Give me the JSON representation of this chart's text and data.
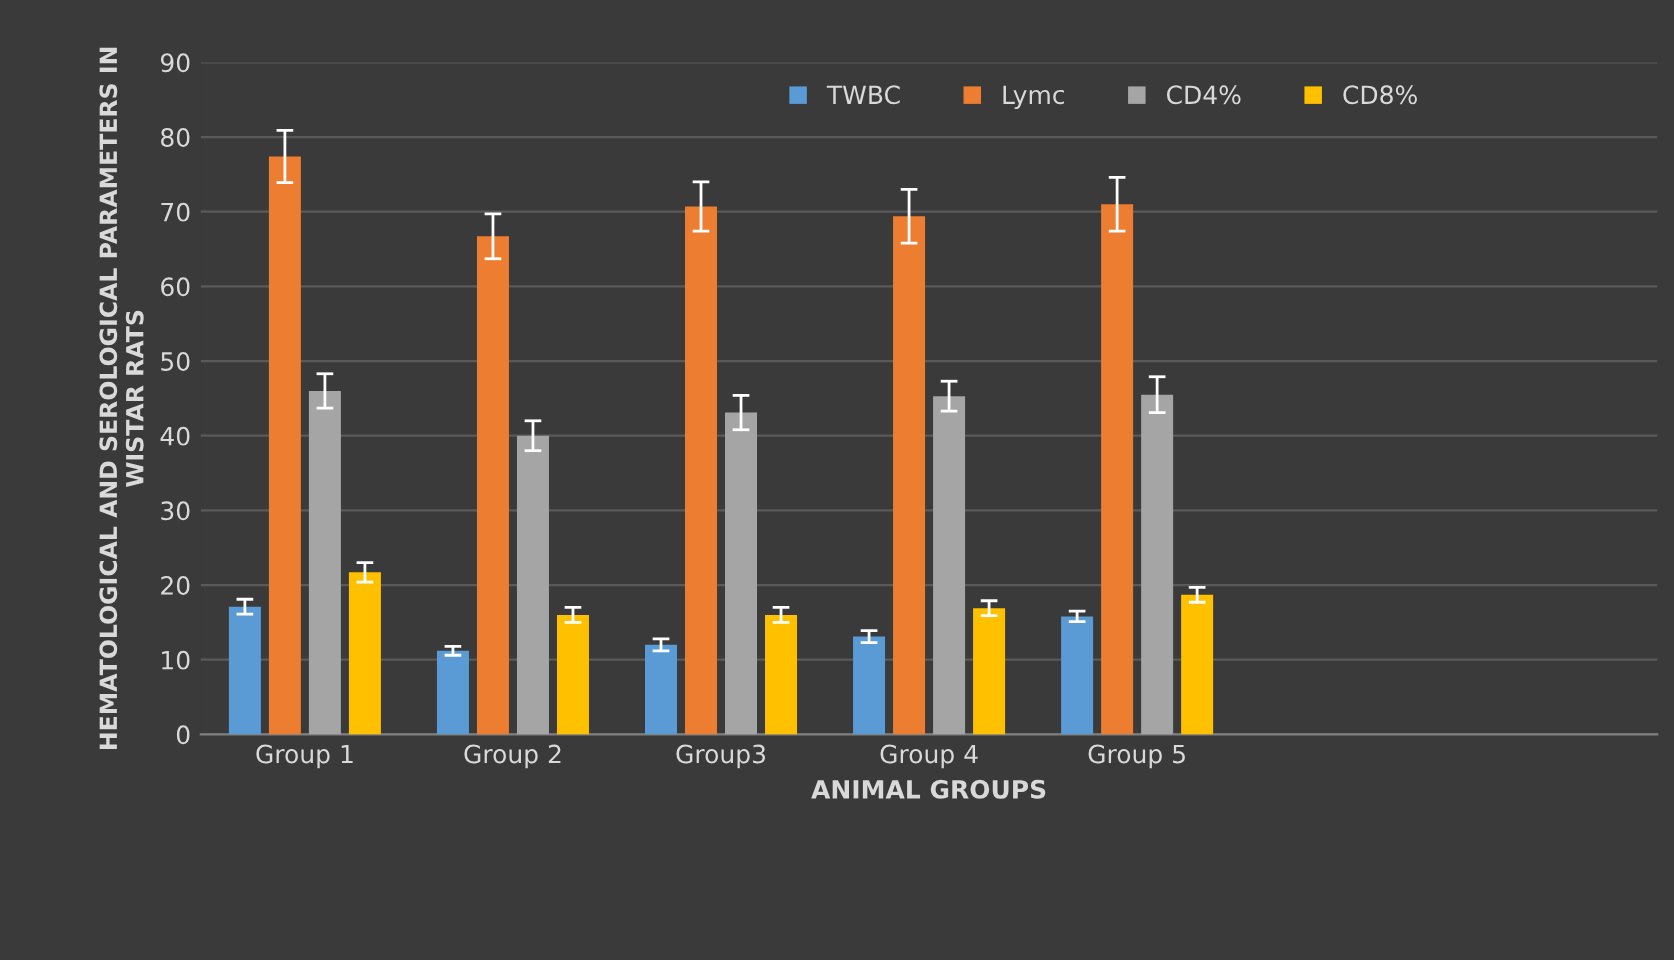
{
  "chart_data": {
    "type": "bar",
    "xlabel": "ANIMAL GROUPS",
    "ylabel": "HEMATOLOGICAL AND SEROLOGICAL PARAMETERS IN\nWISTAR RATS",
    "categories": [
      "Group 1",
      "Group 2",
      "Group3",
      "Group 4",
      "Group 5",
      null,
      null
    ],
    "series": [
      {
        "name": "TWBC",
        "color": "#5b9bd5",
        "values": [
          17.1,
          11.2,
          12,
          13.1,
          15.8,
          null,
          null
        ],
        "errors": [
          1,
          0.6,
          0.8,
          0.8,
          0.7,
          null,
          null
        ]
      },
      {
        "name": "Lymc",
        "color": "#ed7d31",
        "values": [
          77.4,
          66.7,
          70.7,
          69.4,
          71,
          null,
          null
        ],
        "errors": [
          3.5,
          3,
          3.3,
          3.6,
          3.6,
          null,
          null
        ]
      },
      {
        "name": "CD4%",
        "color": "#a5a5a5",
        "values": [
          46,
          40,
          43.1,
          45.3,
          45.5,
          null,
          null
        ],
        "errors": [
          2.3,
          2,
          2.3,
          2,
          2.4,
          null,
          null
        ]
      },
      {
        "name": "CD8%",
        "color": "#ffc000",
        "values": [
          21.7,
          16,
          16,
          16.9,
          18.7,
          null,
          null
        ],
        "errors": [
          1.3,
          1,
          1,
          1,
          1,
          null,
          null
        ]
      }
    ],
    "ylim": [
      0,
      90
    ],
    "yticks": [
      0,
      10,
      20,
      30,
      40,
      50,
      60,
      70,
      80,
      90
    ],
    "grid": "y",
    "legend": "top"
  }
}
